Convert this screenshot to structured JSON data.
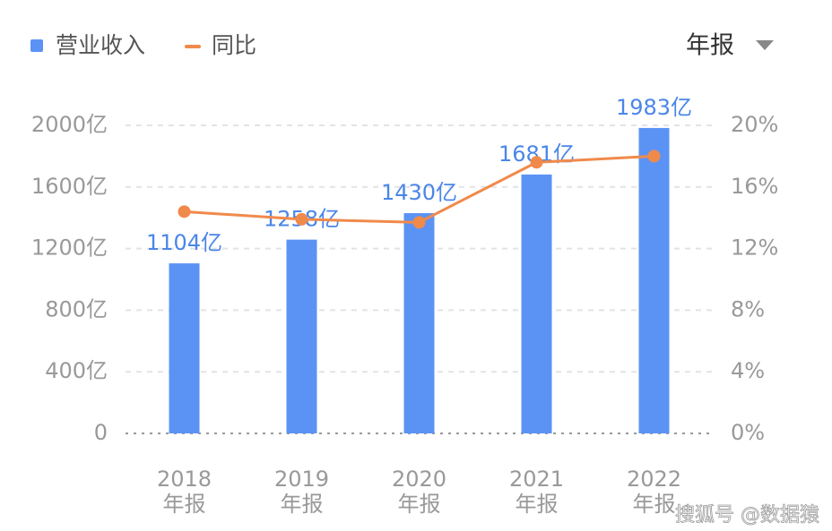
{
  "chart_data": {
    "type": "bar_line",
    "period_selector": "年报",
    "categories": [
      "2018",
      "2019",
      "2020",
      "2021",
      "2022"
    ],
    "category_period": "年报",
    "series": [
      {
        "name": "营业收入",
        "type": "bar",
        "color": "#5b93f5",
        "values": [
          1104,
          1258,
          1430,
          1681,
          1983
        ],
        "value_labels": [
          "1104亿",
          "1258亿",
          "1430亿",
          "1681亿",
          "1983亿"
        ]
      },
      {
        "name": "同比",
        "type": "line",
        "axis": "y2",
        "color": "#f08a4b",
        "values": [
          14.4,
          13.9,
          13.7,
          17.6,
          18.0
        ]
      }
    ],
    "ylim": [
      0,
      2000
    ],
    "yticks": [
      0,
      {
        "value": 400,
        "label": "400亿"
      },
      {
        "value": 800,
        "label": "800亿"
      },
      {
        "value": 1200,
        "label": "1200亿"
      },
      {
        "value": 1600,
        "label": "1600亿"
      },
      {
        "value": 2000,
        "label": "2000亿"
      }
    ],
    "y2lim": [
      0,
      20
    ],
    "y2ticks": [
      {
        "value": 0,
        "label": "0%"
      },
      {
        "value": 4,
        "label": "4%"
      },
      {
        "value": 8,
        "label": "8%"
      },
      {
        "value": 12,
        "label": "12%"
      },
      {
        "value": 16,
        "label": "16%"
      },
      {
        "value": 20,
        "label": "20%"
      }
    ],
    "grid": true,
    "watermark": "搜狐号 @数据猿"
  }
}
